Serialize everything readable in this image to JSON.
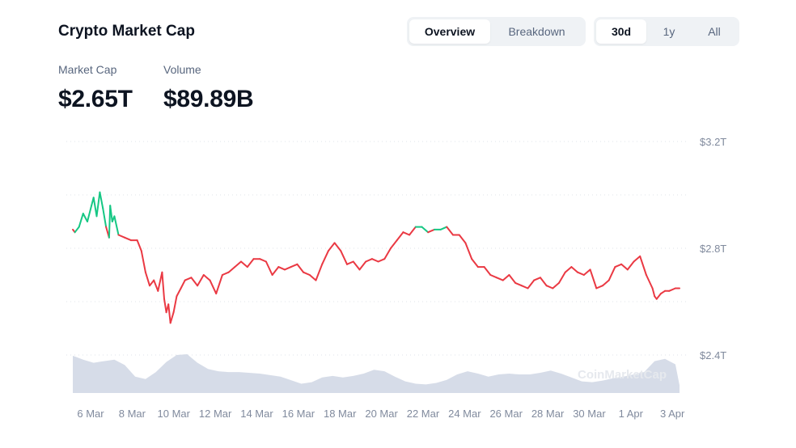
{
  "header": {
    "title": "Crypto Market Cap",
    "view_tabs": [
      {
        "label": "Overview",
        "active": true
      },
      {
        "label": "Breakdown",
        "active": false
      }
    ],
    "range_tabs": [
      {
        "label": "30d",
        "active": true
      },
      {
        "label": "1y",
        "active": false
      },
      {
        "label": "All",
        "active": false
      }
    ]
  },
  "stats": {
    "market_cap_label": "Market Cap",
    "market_cap_value": "$2.65T",
    "volume_label": "Volume",
    "volume_value": "$89.89B"
  },
  "watermark": "CoinMarketCap",
  "colors": {
    "up": "#16c784",
    "down": "#ea3943",
    "volume": "#cfd6e4",
    "grid": "#dfe3ea"
  },
  "chart_data": {
    "type": "line",
    "y_unit": "T",
    "yticks": [
      "$3.2T",
      "$2.8T",
      "$2.4T"
    ],
    "yticks_values": [
      3.2,
      2.8,
      2.4
    ],
    "ylim": [
      2.34,
      3.2
    ],
    "xticks": [
      "6 Mar",
      "8 Mar",
      "10 Mar",
      "12 Mar",
      "14 Mar",
      "16 Mar",
      "18 Mar",
      "20 Mar",
      "22 Mar",
      "24 Mar",
      "26 Mar",
      "28 Mar",
      "30 Mar",
      "1 Apr",
      "3 Apr"
    ],
    "xticks_day": [
      0,
      2,
      4,
      6,
      8,
      10,
      12,
      14,
      16,
      18,
      20,
      22,
      24,
      26,
      28
    ],
    "grid": true,
    "baseline": 2.87,
    "series": [
      {
        "x": [
          0,
          0.1,
          0.3,
          0.5,
          0.7,
          0.9,
          1.0,
          1.15,
          1.3,
          1.45,
          1.6,
          1.75,
          1.8,
          1.9,
          2.0,
          2.2,
          2.5,
          2.8,
          3.1,
          3.3,
          3.5,
          3.7,
          3.9,
          4.1,
          4.3,
          4.4,
          4.5,
          4.6,
          4.7,
          4.85,
          5.0,
          5.2,
          5.4,
          5.7,
          6.0,
          6.3,
          6.6,
          6.9,
          7.2,
          7.5,
          7.8,
          8.1,
          8.4,
          8.7,
          9.0,
          9.3,
          9.6,
          9.9,
          10.2,
          10.5,
          10.8,
          11.1,
          11.4,
          11.7,
          12.0,
          12.3,
          12.6,
          12.9,
          13.2,
          13.5,
          13.8,
          14.1,
          14.4,
          14.7,
          15.0,
          15.3,
          15.6,
          15.9,
          16.2,
          16.5,
          16.8,
          17.1,
          17.4,
          17.7,
          18.0,
          18.3,
          18.6,
          18.9,
          19.2,
          19.5,
          19.8,
          20.1,
          20.4,
          20.7,
          21.0,
          21.3,
          21.6,
          21.9,
          22.2,
          22.5,
          22.8,
          23.1,
          23.4,
          23.7,
          24.0,
          24.3,
          24.6,
          24.9,
          25.2,
          25.5,
          25.8,
          26.1,
          26.4,
          26.7,
          27.0,
          27.3,
          27.6,
          27.9,
          28.0,
          28.1,
          28.3,
          28.5,
          28.7,
          29.0,
          29.2
        ],
        "values": [
          2.87,
          2.86,
          2.88,
          2.93,
          2.9,
          2.96,
          2.99,
          2.92,
          3.01,
          2.95,
          2.88,
          2.84,
          2.96,
          2.9,
          2.92,
          2.85,
          2.84,
          2.83,
          2.83,
          2.79,
          2.71,
          2.66,
          2.68,
          2.64,
          2.71,
          2.61,
          2.56,
          2.59,
          2.52,
          2.56,
          2.62,
          2.65,
          2.68,
          2.69,
          2.66,
          2.7,
          2.68,
          2.63,
          2.7,
          2.71,
          2.73,
          2.75,
          2.73,
          2.76,
          2.76,
          2.75,
          2.7,
          2.73,
          2.72,
          2.73,
          2.74,
          2.71,
          2.7,
          2.68,
          2.74,
          2.79,
          2.82,
          2.79,
          2.74,
          2.75,
          2.72,
          2.75,
          2.76,
          2.75,
          2.76,
          2.8,
          2.83,
          2.86,
          2.85,
          2.88,
          2.88,
          2.86,
          2.87,
          2.87,
          2.88,
          2.85,
          2.85,
          2.82,
          2.76,
          2.73,
          2.73,
          2.7,
          2.69,
          2.68,
          2.7,
          2.67,
          2.66,
          2.65,
          2.68,
          2.69,
          2.66,
          2.65,
          2.67,
          2.71,
          2.73,
          2.71,
          2.7,
          2.72,
          2.65,
          2.66,
          2.68,
          2.73,
          2.74,
          2.72,
          2.75,
          2.77,
          2.7,
          2.65,
          2.62,
          2.61,
          2.63,
          2.64,
          2.64,
          2.65,
          2.65
        ]
      },
      {
        "type": "area",
        "x": [
          0,
          0.5,
          1.0,
          1.5,
          2.0,
          2.5,
          3.0,
          3.5,
          4.0,
          4.5,
          5.0,
          5.5,
          6.0,
          6.5,
          7.0,
          7.5,
          8.0,
          9.0,
          10.0,
          11.0,
          11.5,
          12.0,
          12.5,
          13.0,
          13.5,
          14.0,
          14.5,
          15.0,
          15.5,
          16.0,
          16.5,
          17.0,
          17.5,
          18.0,
          18.5,
          19.0,
          19.5,
          20.0,
          20.5,
          21.0,
          21.5,
          22.0,
          22.5,
          23.0,
          23.5,
          24.0,
          24.5,
          25.0,
          25.5,
          26.0,
          26.5,
          27.0,
          27.5,
          28.0,
          28.5,
          29.0,
          29.2
        ],
        "values": [
          0.96,
          0.86,
          0.78,
          0.82,
          0.86,
          0.72,
          0.42,
          0.36,
          0.54,
          0.8,
          0.98,
          1.0,
          0.78,
          0.62,
          0.56,
          0.54,
          0.54,
          0.5,
          0.42,
          0.24,
          0.28,
          0.4,
          0.44,
          0.4,
          0.44,
          0.5,
          0.6,
          0.56,
          0.42,
          0.3,
          0.24,
          0.22,
          0.26,
          0.34,
          0.48,
          0.56,
          0.5,
          0.42,
          0.48,
          0.5,
          0.48,
          0.48,
          0.52,
          0.58,
          0.5,
          0.4,
          0.3,
          0.28,
          0.32,
          0.38,
          0.42,
          0.48,
          0.54,
          0.82,
          0.88,
          0.74,
          0.2
        ]
      }
    ]
  }
}
